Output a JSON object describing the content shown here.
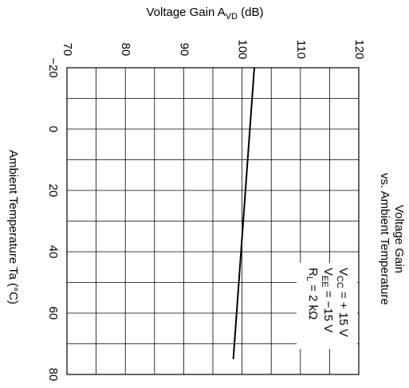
{
  "chart_data": {
    "type": "line",
    "title": [
      "Voltage Gain",
      "vs. Ambient Temperature"
    ],
    "y_label": {
      "text": "Voltage Gain  A",
      "sub": "VD",
      "rest": "  (dB)"
    },
    "x_label": "Ambient Temperature  Ta  (°C)",
    "x": [
      -20,
      75
    ],
    "series": [
      {
        "color": "#000000",
        "values": [
          102.1,
          98.5
        ]
      }
    ],
    "xlim": [
      -20,
      80
    ],
    "xticks": [
      {
        "value": -20,
        "label": "−20"
      },
      0,
      20,
      40,
      60,
      80
    ],
    "xgrid": [
      -20,
      -10,
      0,
      10,
      20,
      30,
      40,
      50,
      60,
      70,
      80
    ],
    "ylim": [
      70,
      120
    ],
    "yticks": [
      70,
      80,
      90,
      100,
      110,
      120
    ],
    "ygrid": [
      70,
      75,
      80,
      85,
      90,
      95,
      100,
      105,
      110,
      115,
      120
    ],
    "annotations": [
      {
        "text": "V",
        "sub": "CC",
        "rest": " = + 15 V"
      },
      {
        "text": "V",
        "sub": "EE",
        "rest": " = −15 V"
      },
      {
        "text": "R",
        "sub": "L",
        "rest": " = 2 kΩ"
      }
    ]
  }
}
